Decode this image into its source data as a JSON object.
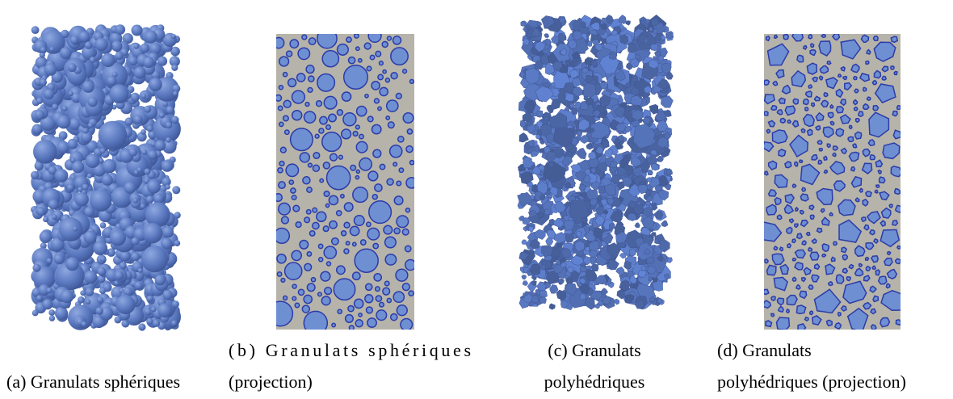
{
  "figures": [
    {
      "caption": [
        "(a) Granulats sphériques"
      ]
    },
    {
      "caption": [
        "(b) Granulats sphériques",
        "(projection)"
      ]
    },
    {
      "caption": [
        "(c) Granulats",
        "polyhédriques"
      ]
    },
    {
      "caption": [
        "(d) Granulats",
        "polyhédriques (projection)"
      ]
    }
  ]
}
